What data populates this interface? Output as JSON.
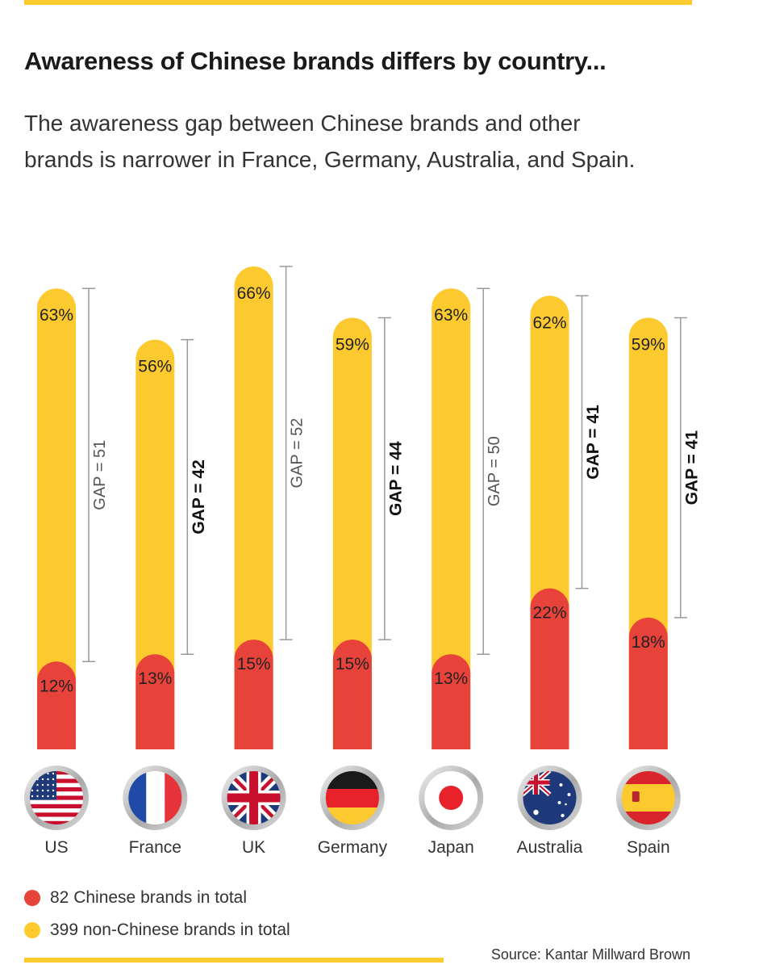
{
  "title": "Awareness of Chinese brands differs by country...",
  "subtitle": "The awareness gap between Chinese brands and other brands is narrower in France, Germany, Australia, and Spain.",
  "source": "Source: Kantar Millward Brown",
  "colors": {
    "chinese": "#e8433a",
    "non_chinese": "#fcc92f",
    "bracket": "#999999",
    "accent_rule": "#fcc92f"
  },
  "chart_data": {
    "type": "bar",
    "categories": [
      "US",
      "France",
      "UK",
      "Germany",
      "Japan",
      "Australia",
      "Spain"
    ],
    "series": [
      {
        "name": "82 Chinese brands in total",
        "values": [
          12,
          13,
          15,
          15,
          13,
          22,
          18
        ],
        "color": "#e8433a"
      },
      {
        "name": "399 non-Chinese brands in total",
        "values": [
          63,
          56,
          66,
          59,
          63,
          62,
          59
        ],
        "color": "#fcc92f"
      }
    ],
    "value_labels": {
      "chinese": [
        "12%",
        "13%",
        "15%",
        "15%",
        "13%",
        "22%",
        "18%"
      ],
      "non_chinese": [
        "63%",
        "56%",
        "66%",
        "59%",
        "63%",
        "62%",
        "59%"
      ]
    },
    "gaps": [
      {
        "label": "GAP = 51",
        "highlight": false
      },
      {
        "label": "GAP = 42",
        "highlight": true
      },
      {
        "label": "GAP = 52",
        "highlight": false
      },
      {
        "label": "GAP = 44",
        "highlight": true
      },
      {
        "label": "GAP = 50",
        "highlight": false
      },
      {
        "label": "GAP = 41",
        "highlight": true
      },
      {
        "label": "GAP = 41",
        "highlight": true
      }
    ],
    "flag_icons": [
      "us-flag-icon",
      "france-flag-icon",
      "uk-flag-icon",
      "germany-flag-icon",
      "japan-flag-icon",
      "australia-flag-icon",
      "spain-flag-icon"
    ],
    "legend_position": "bottom-left",
    "ylim": [
      0,
      70
    ],
    "grid": false
  }
}
